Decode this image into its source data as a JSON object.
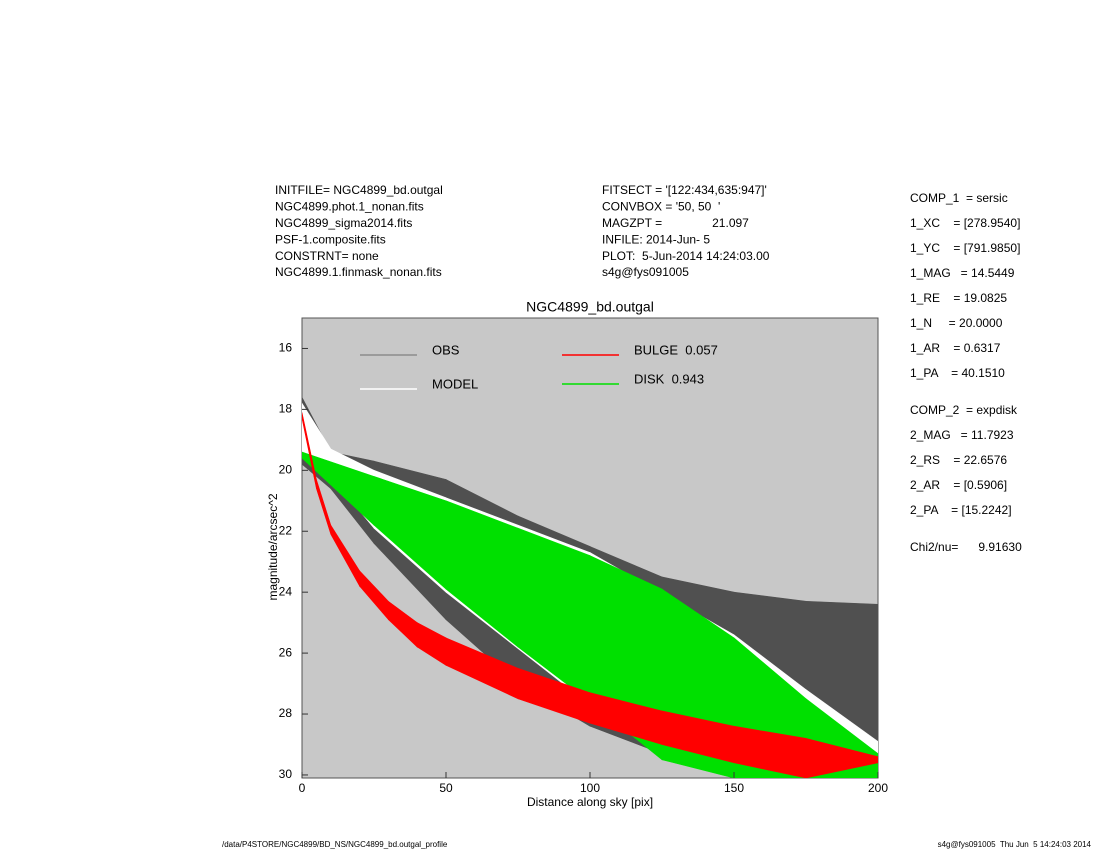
{
  "header": {
    "left": [
      "INITFILE= NGC4899_bd.outgal",
      "NGC4899.phot.1_nonan.fits",
      "NGC4899_sigma2014.fits",
      "PSF-1.composite.fits",
      "CONSTRNT= none",
      "NGC4899.1.finmask_nonan.fits"
    ],
    "middle": [
      "FITSECT = '[122:434,635:947]'",
      "CONVBOX = '50, 50  '",
      "MAGZPT =               21.097",
      "INFILE: 2014-Jun- 5",
      "PLOT:  5-Jun-2014 14:24:03.00",
      "s4g@fys091005"
    ],
    "parameters": [
      [
        "COMP_1  = sersic",
        "1_XC    = [278.9540]",
        "1_YC    = [791.9850]",
        "1_MAG   = 14.5449",
        "1_RE    = 19.0825",
        "1_N     = 20.0000",
        "1_AR    = 0.6317",
        "1_PA    = 40.1510"
      ],
      [
        "COMP_2  = expdisk",
        "2_MAG   = 11.7923",
        "2_RS    = 22.6576",
        "2_AR    = [0.5906]",
        "2_PA    = [15.2242]"
      ],
      [
        "Chi2/nu=      9.91630"
      ]
    ]
  },
  "chart_data": {
    "type": "band",
    "title": "NGC4899_bd.outgal",
    "x_label": "Distance along sky [pix]",
    "y_label": "magnitude/arcsec^2",
    "xlim": [
      0,
      200
    ],
    "ylim": [
      15,
      30.1
    ],
    "y_inverted": true,
    "xticks": [
      0,
      50,
      100,
      150,
      200
    ],
    "yticks": [
      16,
      18,
      20,
      22,
      24,
      26,
      28,
      30
    ],
    "background": "#c8c8c8",
    "series": [
      {
        "name": "OBS",
        "color": "#505050",
        "legend_color": "#8c8c8c",
        "x": [
          0,
          10,
          25,
          50,
          75,
          100,
          125,
          150,
          175,
          200
        ],
        "low": [
          17.6,
          19.4,
          19.7,
          20.3,
          21.5,
          22.5,
          23.5,
          24.0,
          24.3,
          24.4
        ],
        "high": [
          19.8,
          20.6,
          22.4,
          24.9,
          27.0,
          28.4,
          29.3,
          30.1,
          30.1,
          30.1
        ]
      },
      {
        "name": "MODEL",
        "color": "#ffffff",
        "legend_color": "#ffffff",
        "x": [
          0,
          10,
          25,
          50,
          100,
          150,
          175,
          200
        ],
        "low": [
          17.8,
          19.3,
          20.0,
          20.9,
          22.7,
          25.4,
          27.2,
          28.9
        ],
        "high": [
          19.4,
          20.2,
          21.9,
          24.0,
          27.7,
          30.1,
          30.1,
          30.1
        ]
      },
      {
        "name": "DISK  0.943",
        "color": "#00e000",
        "legend_color": "#00e000",
        "x": [
          0,
          25,
          50,
          75,
          100,
          125,
          150,
          175,
          200
        ],
        "low": [
          19.4,
          20.2,
          21.0,
          21.9,
          22.8,
          23.9,
          25.5,
          27.5,
          29.3
        ],
        "high": [
          19.6,
          21.8,
          23.9,
          25.8,
          27.6,
          29.5,
          30.1,
          30.1,
          30.1
        ]
      },
      {
        "name": "BULGE  0.057",
        "color": "#ff0000",
        "legend_color": "#ff0000",
        "x": [
          0,
          5,
          10,
          20,
          30,
          40,
          50,
          75,
          100,
          125,
          150,
          175,
          200
        ],
        "low": [
          18.1,
          20.3,
          21.8,
          23.3,
          24.3,
          25.0,
          25.5,
          26.5,
          27.3,
          27.9,
          28.4,
          28.8,
          29.4
        ],
        "high": [
          18.3,
          20.6,
          22.1,
          23.8,
          24.9,
          25.8,
          26.4,
          27.5,
          28.3,
          29.0,
          29.6,
          30.1,
          29.6
        ]
      }
    ]
  },
  "footer": {
    "left": "/data/P4STORE/NGC4899/BD_NS/NGC4899_bd.outgal_profile",
    "right": "s4g@fys091005  Thu Jun  5 14:24:03 2014"
  }
}
